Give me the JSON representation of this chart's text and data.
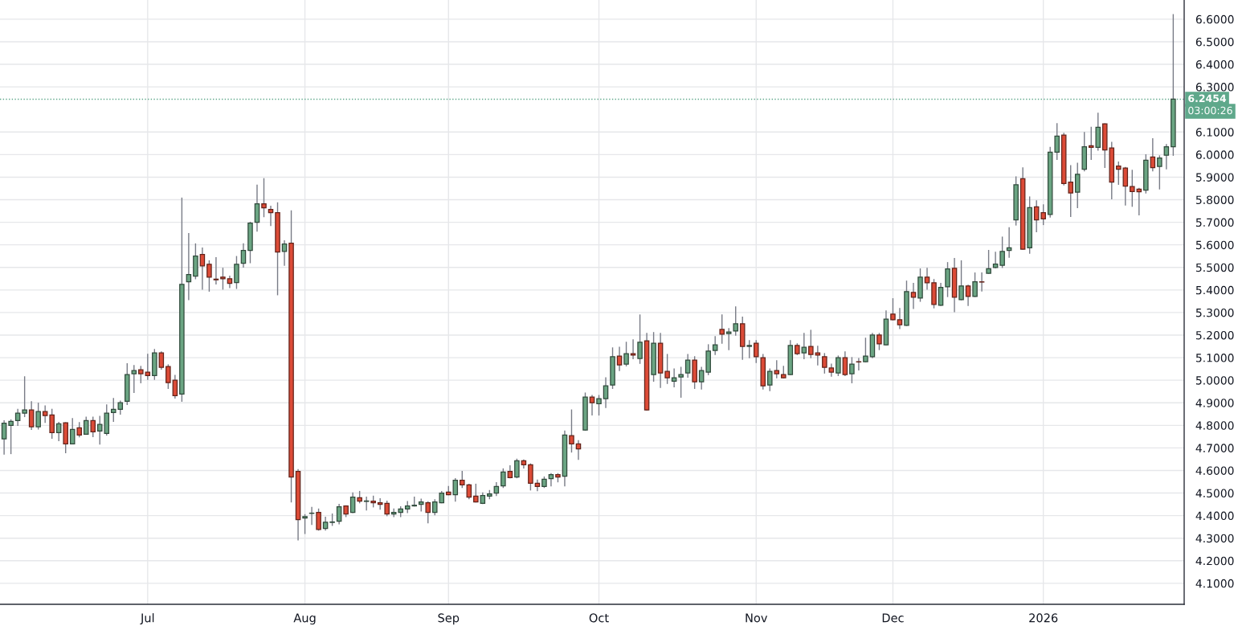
{
  "chart_data": {
    "type": "candlestick",
    "categories": [
      null,
      null,
      null,
      null,
      null,
      null,
      null,
      null,
      null,
      null,
      null,
      null,
      null,
      null,
      null,
      null,
      null,
      null,
      null,
      null,
      null,
      "Jul",
      null,
      null,
      null,
      null,
      null,
      null,
      null,
      null,
      null,
      null,
      null,
      null,
      null,
      null,
      null,
      null,
      null,
      null,
      null,
      null,
      null,
      null,
      "Aug",
      null,
      null,
      null,
      null,
      null,
      null,
      null,
      null,
      null,
      null,
      null,
      null,
      null,
      null,
      null,
      null,
      null,
      null,
      null,
      null,
      "Sep",
      null,
      null,
      null,
      null,
      null,
      null,
      null,
      null,
      null,
      null,
      null,
      null,
      null,
      null,
      null,
      null,
      null,
      null,
      null,
      null,
      null,
      "Oct",
      null,
      null,
      null,
      null,
      null,
      null,
      null,
      null,
      null,
      null,
      null,
      null,
      null,
      null,
      null,
      null,
      null,
      null,
      null,
      null,
      null,
      null,
      "Nov",
      null,
      null,
      null,
      null,
      null,
      null,
      null,
      null,
      null,
      null,
      null,
      null,
      null,
      null,
      null,
      null,
      null,
      null,
      null,
      "Dec",
      null,
      null,
      null,
      null,
      null,
      null,
      null,
      null,
      null,
      null,
      null,
      null,
      null,
      null,
      null,
      null,
      null,
      null,
      null,
      null,
      null,
      "2026",
      null,
      null,
      null,
      null,
      null,
      null,
      null,
      null,
      null,
      null,
      null,
      null,
      null,
      null,
      null,
      null,
      null,
      null,
      null
    ],
    "ohlc": [
      [
        4.74,
        4.82,
        4.673,
        4.81
      ],
      [
        4.8,
        4.824,
        4.675,
        4.818
      ],
      [
        4.821,
        4.871,
        4.8,
        4.854
      ],
      [
        4.854,
        5.015,
        4.839,
        4.868
      ],
      [
        4.868,
        4.905,
        4.782,
        4.794
      ],
      [
        4.794,
        4.898,
        4.784,
        4.861
      ],
      [
        4.861,
        4.886,
        4.813,
        4.843
      ],
      [
        4.846,
        4.871,
        4.743,
        4.768
      ],
      [
        4.768,
        4.813,
        4.732,
        4.807
      ],
      [
        4.811,
        4.811,
        4.679,
        4.718
      ],
      [
        4.718,
        4.83,
        4.718,
        4.782
      ],
      [
        4.789,
        4.812,
        4.749,
        4.757
      ],
      [
        4.761,
        4.836,
        4.761,
        4.821
      ],
      [
        4.821,
        4.836,
        4.75,
        4.771
      ],
      [
        4.775,
        4.84,
        4.717,
        4.804
      ],
      [
        4.764,
        4.89,
        4.757,
        4.854
      ],
      [
        4.857,
        4.919,
        4.818,
        4.871
      ],
      [
        4.871,
        4.907,
        4.85,
        4.9
      ],
      [
        4.907,
        5.073,
        4.893,
        5.025
      ],
      [
        5.029,
        5.065,
        4.946,
        5.043
      ],
      [
        5.046,
        5.061,
        4.989,
        5.029
      ],
      [
        5.036,
        5.115,
        5.004,
        5.021
      ],
      [
        5.021,
        5.136,
        5.004,
        5.121
      ],
      [
        5.121,
        5.125,
        5.049,
        5.057
      ],
      [
        5.061,
        5.068,
        4.964,
        4.989
      ],
      [
        5.0,
        5.021,
        4.921,
        4.932
      ],
      [
        4.939,
        5.807,
        4.907,
        5.425
      ],
      [
        5.436,
        5.65,
        5.357,
        5.468
      ],
      [
        5.461,
        5.604,
        5.45,
        5.55
      ],
      [
        5.557,
        5.586,
        5.404,
        5.507
      ],
      [
        5.514,
        5.529,
        5.395,
        5.457
      ],
      [
        5.448,
        5.543,
        5.427,
        5.445
      ],
      [
        5.457,
        5.496,
        5.404,
        5.45
      ],
      [
        5.45,
        5.461,
        5.411,
        5.429
      ],
      [
        5.433,
        5.548,
        5.407,
        5.514
      ],
      [
        5.518,
        5.604,
        5.502,
        5.575
      ],
      [
        5.575,
        5.7,
        5.521,
        5.696
      ],
      [
        5.7,
        5.864,
        5.661,
        5.782
      ],
      [
        5.782,
        5.893,
        5.725,
        5.764
      ],
      [
        5.757,
        5.771,
        5.686,
        5.743
      ],
      [
        5.743,
        5.786,
        5.379,
        5.568
      ],
      [
        5.571,
        5.618,
        5.51,
        5.604
      ],
      [
        5.607,
        5.75,
        4.461,
        4.571
      ],
      [
        4.596,
        4.604,
        4.293,
        4.382
      ],
      [
        4.389,
        4.404,
        4.321,
        4.396
      ],
      [
        4.41,
        4.436,
        4.361,
        4.411
      ],
      [
        4.414,
        4.429,
        4.336,
        4.339
      ],
      [
        4.343,
        4.393,
        4.336,
        4.371
      ],
      [
        4.37,
        4.407,
        4.357,
        4.372
      ],
      [
        4.375,
        4.45,
        4.364,
        4.439
      ],
      [
        4.443,
        4.443,
        4.396,
        4.407
      ],
      [
        4.414,
        4.5,
        4.414,
        4.482
      ],
      [
        4.479,
        4.507,
        4.457,
        4.464
      ],
      [
        4.463,
        4.482,
        4.425,
        4.465
      ],
      [
        4.464,
        4.486,
        4.439,
        4.457
      ],
      [
        4.457,
        4.475,
        4.429,
        4.45
      ],
      [
        4.454,
        4.464,
        4.4,
        4.407
      ],
      [
        4.407,
        4.429,
        4.396,
        4.414
      ],
      [
        4.414,
        4.439,
        4.396,
        4.429
      ],
      [
        4.429,
        4.462,
        4.414,
        4.443
      ],
      [
        4.443,
        4.482,
        4.443,
        4.446
      ],
      [
        4.45,
        4.473,
        4.421,
        4.461
      ],
      [
        4.457,
        4.461,
        4.368,
        4.414
      ],
      [
        4.414,
        4.47,
        4.404,
        4.461
      ],
      [
        4.457,
        4.507,
        4.457,
        4.5
      ],
      [
        4.504,
        4.529,
        4.493,
        4.493
      ],
      [
        4.493,
        4.564,
        4.464,
        4.557
      ],
      [
        4.557,
        4.596,
        4.525,
        4.536
      ],
      [
        4.536,
        4.539,
        4.475,
        4.482
      ],
      [
        4.486,
        4.539,
        4.461,
        4.461
      ],
      [
        4.454,
        4.5,
        4.454,
        4.489
      ],
      [
        4.486,
        4.511,
        4.475,
        4.496
      ],
      [
        4.5,
        4.546,
        4.489,
        4.529
      ],
      [
        4.532,
        4.607,
        4.525,
        4.593
      ],
      [
        4.596,
        4.621,
        4.568,
        4.568
      ],
      [
        4.571,
        4.65,
        4.568,
        4.643
      ],
      [
        4.643,
        4.646,
        4.611,
        4.625
      ],
      [
        4.625,
        4.629,
        4.514,
        4.543
      ],
      [
        4.543,
        4.557,
        4.511,
        4.529
      ],
      [
        4.529,
        4.571,
        4.525,
        4.561
      ],
      [
        4.564,
        4.586,
        4.532,
        4.582
      ],
      [
        4.582,
        4.586,
        4.55,
        4.571
      ],
      [
        4.575,
        4.775,
        4.532,
        4.757
      ],
      [
        4.754,
        4.868,
        4.682,
        4.718
      ],
      [
        4.718,
        4.732,
        4.65,
        4.696
      ],
      [
        4.779,
        4.943,
        4.779,
        4.925
      ],
      [
        4.925,
        4.932,
        4.846,
        4.9
      ],
      [
        4.896,
        4.932,
        4.846,
        4.918
      ],
      [
        4.918,
        5.011,
        4.879,
        4.975
      ],
      [
        4.979,
        5.143,
        4.964,
        5.104
      ],
      [
        5.107,
        5.146,
        5.043,
        5.068
      ],
      [
        5.071,
        5.168,
        5.064,
        5.118
      ],
      [
        5.118,
        5.179,
        5.096,
        5.111
      ],
      [
        5.096,
        5.289,
        5.075,
        5.168
      ],
      [
        5.175,
        5.207,
        4.868,
        4.868
      ],
      [
        5.025,
        5.211,
        4.996,
        5.164
      ],
      [
        5.164,
        5.207,
        4.968,
        5.032
      ],
      [
        5.039,
        5.114,
        4.986,
        5.011
      ],
      [
        4.996,
        5.05,
        4.971,
        5.011
      ],
      [
        5.014,
        5.057,
        4.925,
        5.025
      ],
      [
        5.032,
        5.114,
        5.014,
        5.089
      ],
      [
        5.089,
        5.104,
        4.964,
        4.993
      ],
      [
        4.993,
        5.057,
        4.961,
        5.043
      ],
      [
        5.036,
        5.157,
        5.025,
        5.129
      ],
      [
        5.132,
        5.193,
        5.114,
        5.157
      ],
      [
        5.225,
        5.289,
        5.164,
        5.204
      ],
      [
        5.207,
        5.229,
        5.136,
        5.214
      ],
      [
        5.218,
        5.325,
        5.2,
        5.25
      ],
      [
        5.25,
        5.279,
        5.093,
        5.15
      ],
      [
        5.15,
        5.175,
        5.1,
        5.154
      ],
      [
        5.164,
        5.175,
        5.079,
        5.104
      ],
      [
        5.1,
        5.114,
        4.961,
        4.975
      ],
      [
        4.979,
        5.05,
        4.954,
        5.039
      ],
      [
        5.043,
        5.086,
        5.011,
        5.029
      ],
      [
        5.025,
        5.061,
        5.011,
        5.011
      ],
      [
        5.025,
        5.175,
        5.025,
        5.154
      ],
      [
        5.154,
        5.161,
        5.114,
        5.118
      ],
      [
        5.121,
        5.207,
        5.096,
        5.146
      ],
      [
        5.15,
        5.221,
        5.1,
        5.114
      ],
      [
        5.121,
        5.15,
        5.068,
        5.111
      ],
      [
        5.104,
        5.118,
        5.032,
        5.057
      ],
      [
        5.054,
        5.071,
        5.018,
        5.036
      ],
      [
        5.032,
        5.107,
        5.021,
        5.1
      ],
      [
        5.1,
        5.125,
        5.021,
        5.025
      ],
      [
        5.029,
        5.1,
        4.989,
        5.071
      ],
      [
        5.082,
        5.096,
        5.046,
        5.081
      ],
      [
        5.082,
        5.186,
        5.082,
        5.107
      ],
      [
        5.104,
        5.207,
        5.1,
        5.2
      ],
      [
        5.2,
        5.207,
        5.136,
        5.161
      ],
      [
        5.157,
        5.307,
        5.157,
        5.271
      ],
      [
        5.293,
        5.361,
        5.268,
        5.268
      ],
      [
        5.268,
        5.318,
        5.229,
        5.246
      ],
      [
        5.243,
        5.439,
        5.243,
        5.393
      ],
      [
        5.389,
        5.429,
        5.318,
        5.368
      ],
      [
        5.364,
        5.493,
        5.35,
        5.457
      ],
      [
        5.457,
        5.496,
        5.404,
        5.432
      ],
      [
        5.432,
        5.446,
        5.321,
        5.336
      ],
      [
        5.332,
        5.429,
        5.332,
        5.411
      ],
      [
        5.414,
        5.521,
        5.371,
        5.493
      ],
      [
        5.496,
        5.539,
        5.304,
        5.368
      ],
      [
        5.357,
        5.529,
        5.357,
        5.418
      ],
      [
        5.418,
        5.421,
        5.332,
        5.371
      ],
      [
        5.371,
        5.475,
        5.371,
        5.436
      ],
      [
        5.436,
        5.475,
        5.396,
        5.435
      ],
      [
        5.474,
        5.575,
        5.474,
        5.494
      ],
      [
        5.5,
        5.567,
        5.498,
        5.515
      ],
      [
        5.509,
        5.634,
        5.5,
        5.571
      ],
      [
        5.575,
        5.676,
        5.545,
        5.587
      ],
      [
        5.711,
        5.901,
        5.688,
        5.866
      ],
      [
        5.893,
        5.941,
        5.581,
        5.581
      ],
      [
        5.587,
        5.812,
        5.563,
        5.765
      ],
      [
        5.768,
        5.795,
        5.658,
        5.711
      ],
      [
        5.743,
        5.777,
        5.69,
        5.715
      ],
      [
        5.735,
        6.032,
        5.723,
        6.011
      ],
      [
        6.011,
        6.137,
        5.979,
        6.082
      ],
      [
        6.086,
        6.094,
        5.866,
        5.872
      ],
      [
        5.878,
        5.951,
        5.726,
        5.83
      ],
      [
        5.833,
        5.961,
        5.765,
        5.913
      ],
      [
        5.935,
        6.098,
        5.928,
        6.035
      ],
      [
        6.039,
        6.121,
        5.979,
        6.032
      ],
      [
        6.032,
        6.183,
        6.02,
        6.121
      ],
      [
        6.136,
        6.136,
        5.943,
        6.02
      ],
      [
        6.029,
        6.054,
        5.804,
        5.878
      ],
      [
        5.949,
        5.967,
        5.868,
        5.935
      ],
      [
        5.94,
        5.943,
        5.777,
        5.86
      ],
      [
        5.858,
        5.93,
        5.771,
        5.836
      ],
      [
        5.847,
        5.85,
        5.733,
        5.835
      ],
      [
        5.842,
        5.999,
        5.83,
        5.975
      ],
      [
        5.989,
        6.07,
        5.928,
        5.942
      ],
      [
        5.947,
        5.994,
        5.848,
        5.985
      ],
      [
        5.997,
        6.044,
        5.937,
        6.035
      ],
      [
        6.035,
        6.62,
        5.997,
        6.2454
      ]
    ],
    "colors": [
      "#6ba583",
      "#6ba583",
      "#6ba583",
      "#6ba583",
      "#dc4b37",
      "#6ba583",
      "#dc4b37",
      "#dc4b37",
      "#6ba583",
      "#dc4b37",
      "#6ba583",
      "#dc4b37",
      "#6ba583",
      "#dc4b37",
      "#6ba583",
      "#6ba583",
      "#6ba583",
      "#6ba583",
      "#6ba583",
      "#6ba583",
      "#dc4b37",
      "#dc4b37",
      "#6ba583",
      "#dc4b37",
      "#dc4b37",
      "#dc4b37",
      "#6ba583",
      "#6ba583",
      "#6ba583",
      "#dc4b37",
      "#dc4b37",
      "#dc4b37",
      "#dc4b37",
      "#dc4b37",
      "#6ba583",
      "#6ba583",
      "#6ba583",
      "#6ba583",
      "#dc4b37",
      "#dc4b37",
      "#dc4b37",
      "#6ba583",
      "#dc4b37",
      "#dc4b37",
      "#6ba583",
      "#6ba583",
      "#dc4b37",
      "#6ba583",
      "#6ba583",
      "#6ba583",
      "#dc4b37",
      "#6ba583",
      "#dc4b37",
      "#6ba583",
      "#dc4b37",
      "#dc4b37",
      "#dc4b37",
      "#6ba583",
      "#6ba583",
      "#6ba583",
      "#6ba583",
      "#6ba583",
      "#dc4b37",
      "#6ba583",
      "#6ba583",
      "#dc4b37",
      "#6ba583",
      "#dc4b37",
      "#dc4b37",
      "#dc4b37",
      "#6ba583",
      "#6ba583",
      "#6ba583",
      "#6ba583",
      "#dc4b37",
      "#6ba583",
      "#dc4b37",
      "#dc4b37",
      "#dc4b37",
      "#6ba583",
      "#6ba583",
      "#dc4b37",
      "#6ba583",
      "#dc4b37",
      "#dc4b37",
      "#6ba583",
      "#dc4b37",
      "#6ba583",
      "#6ba583",
      "#6ba583",
      "#dc4b37",
      "#6ba583",
      "#dc4b37",
      "#6ba583",
      "#dc4b37",
      "#6ba583",
      "#dc4b37",
      "#dc4b37",
      "#6ba583",
      "#6ba583",
      "#6ba583",
      "#dc4b37",
      "#6ba583",
      "#6ba583",
      "#6ba583",
      "#dc4b37",
      "#6ba583",
      "#6ba583",
      "#dc4b37",
      "#6ba583",
      "#dc4b37",
      "#dc4b37",
      "#6ba583",
      "#dc4b37",
      "#dc4b37",
      "#6ba583",
      "#dc4b37",
      "#6ba583",
      "#dc4b37",
      "#dc4b37",
      "#dc4b37",
      "#dc4b37",
      "#6ba583",
      "#dc4b37",
      "#6ba583",
      "#dc4b37",
      "#6ba583",
      "#6ba583",
      "#dc4b37",
      "#6ba583",
      "#dc4b37",
      "#dc4b37",
      "#6ba583",
      "#dc4b37",
      "#6ba583",
      "#dc4b37",
      "#dc4b37",
      "#6ba583",
      "#6ba583",
      "#dc4b37",
      "#6ba583",
      "#dc4b37",
      "#6ba583",
      "#dc4b37",
      "#6ba583",
      "#6ba583",
      "#6ba583",
      "#6ba583",
      "#6ba583",
      "#dc4b37",
      "#6ba583",
      "#dc4b37",
      "#dc4b37",
      "#6ba583",
      "#6ba583",
      "#dc4b37",
      "#dc4b37",
      "#6ba583",
      "#6ba583",
      "#dc4b37",
      "#6ba583",
      "#dc4b37",
      "#dc4b37",
      "#dc4b37",
      "#dc4b37",
      "#dc4b37",
      "#dc4b37",
      "#6ba583",
      "#dc4b37",
      "#6ba583",
      "#6ba583",
      "#6ba583"
    ],
    "ylim": [
      4.007,
      6.685
    ],
    "yticks": [
      {
        "value": 4.1,
        "label": "4.1000"
      },
      {
        "value": 4.2,
        "label": "4.2000"
      },
      {
        "value": 4.3,
        "label": "4.3000"
      },
      {
        "value": 4.4,
        "label": "4.4000"
      },
      {
        "value": 4.5,
        "label": "4.5000"
      },
      {
        "value": 4.6,
        "label": "4.6000"
      },
      {
        "value": 4.7,
        "label": "4.7000"
      },
      {
        "value": 4.8,
        "label": "4.8000"
      },
      {
        "value": 4.9,
        "label": "4.9000"
      },
      {
        "value": 5.0,
        "label": "5.0000"
      },
      {
        "value": 5.1,
        "label": "5.1000"
      },
      {
        "value": 5.2,
        "label": "5.2000"
      },
      {
        "value": 5.3,
        "label": "5.3000"
      },
      {
        "value": 5.4,
        "label": "5.4000"
      },
      {
        "value": 5.5,
        "label": "5.5000"
      },
      {
        "value": 5.6,
        "label": "5.6000"
      },
      {
        "value": 5.7,
        "label": "5.7000"
      },
      {
        "value": 5.8,
        "label": "5.8000"
      },
      {
        "value": 5.9,
        "label": "5.9000"
      },
      {
        "value": 6.0,
        "label": "6.0000"
      },
      {
        "value": 6.1,
        "label": "6.1000"
      },
      {
        "value": 6.3,
        "label": "6.3000"
      },
      {
        "value": 6.4,
        "label": "6.4000"
      },
      {
        "value": 6.5,
        "label": "6.5000"
      },
      {
        "value": 6.6,
        "label": "6.6000"
      }
    ],
    "ref_lines": [
      {
        "axis": "y",
        "value": 6.2454,
        "label": "6.2454",
        "color": "#5fa88b",
        "line_style": "dotted"
      }
    ],
    "annotations": [
      "03:00:26"
    ],
    "grid": true
  }
}
